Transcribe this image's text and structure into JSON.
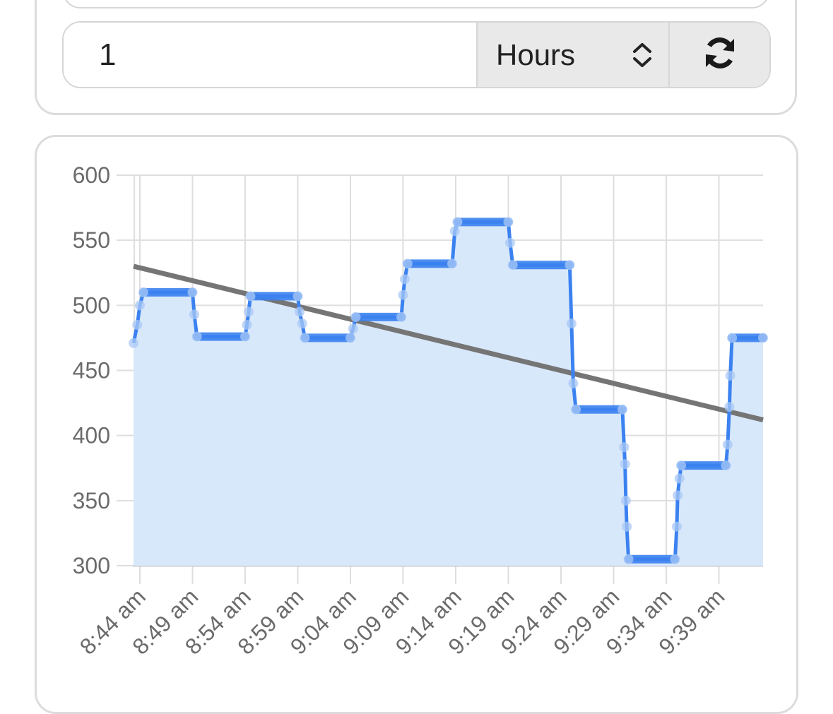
{
  "controls": {
    "quantity_value": "1",
    "unit_selected": "Hours",
    "refresh_icon": "refresh-icon",
    "chevron_icon": "chevron-up-down-icon"
  },
  "colors": {
    "series": "#3b82f0",
    "area_fill": "#d8e8fb",
    "trend": "#757575",
    "grid": "#dedede"
  },
  "chart_data": {
    "type": "line",
    "title": "",
    "xlabel": "",
    "ylabel": "",
    "ylim": [
      300,
      600
    ],
    "y_ticks": [
      "600",
      "550",
      "500",
      "450",
      "400",
      "350",
      "300"
    ],
    "x_ticks": [
      "8:44 am",
      "8:49 am",
      "8:54 am",
      "8:59 am",
      "9:04 am",
      "9:09 am",
      "9:14 am",
      "9:19 am",
      "9:24 am",
      "9:29 am",
      "9:34 am",
      "9:39 am"
    ],
    "grid": true,
    "area_fill": true,
    "series": [
      {
        "name": "",
        "points": [
          [
            "8:43:24",
            471
          ],
          [
            "8:43:45",
            485
          ],
          [
            "8:44:00",
            500
          ],
          [
            "8:44:20",
            510
          ],
          [
            "8:49:00",
            510
          ],
          [
            "8:49:10",
            493
          ],
          [
            "8:49:25",
            476
          ],
          [
            "8:54:00",
            476
          ],
          [
            "8:54:10",
            485
          ],
          [
            "8:54:20",
            495
          ],
          [
            "8:54:30",
            507
          ],
          [
            "8:59:00",
            507
          ],
          [
            "8:59:10",
            495
          ],
          [
            "8:59:25",
            486
          ],
          [
            "8:59:40",
            475
          ],
          [
            "9:04:00",
            475
          ],
          [
            "9:04:15",
            482
          ],
          [
            "9:04:30",
            491
          ],
          [
            "9:08:50",
            491
          ],
          [
            "9:09:00",
            508
          ],
          [
            "9:09:10",
            520
          ],
          [
            "9:09:25",
            532
          ],
          [
            "9:13:40",
            532
          ],
          [
            "9:13:55",
            557
          ],
          [
            "9:14:10",
            564
          ],
          [
            "9:19:00",
            564
          ],
          [
            "9:19:10",
            548
          ],
          [
            "9:19:25",
            531
          ],
          [
            "9:24:50",
            531
          ],
          [
            "9:25:00",
            486
          ],
          [
            "9:25:10",
            440
          ],
          [
            "9:25:25",
            420
          ],
          [
            "9:29:50",
            420
          ],
          [
            "9:30:00",
            391
          ],
          [
            "9:30:05",
            378
          ],
          [
            "9:30:10",
            350
          ],
          [
            "9:30:15",
            330
          ],
          [
            "9:30:25",
            305
          ],
          [
            "9:34:50",
            305
          ],
          [
            "9:35:00",
            330
          ],
          [
            "9:35:05",
            354
          ],
          [
            "9:35:15",
            367
          ],
          [
            "9:35:25",
            377
          ],
          [
            "9:39:40",
            377
          ],
          [
            "9:39:50",
            393
          ],
          [
            "9:40:00",
            422
          ],
          [
            "9:40:05",
            446
          ],
          [
            "9:40:15",
            475
          ],
          [
            "9:43:40",
            475
          ]
        ]
      }
    ],
    "trendline": {
      "name": "",
      "start": [
        "8:43:24",
        530
      ],
      "end": [
        "9:44:00",
        412
      ]
    }
  }
}
